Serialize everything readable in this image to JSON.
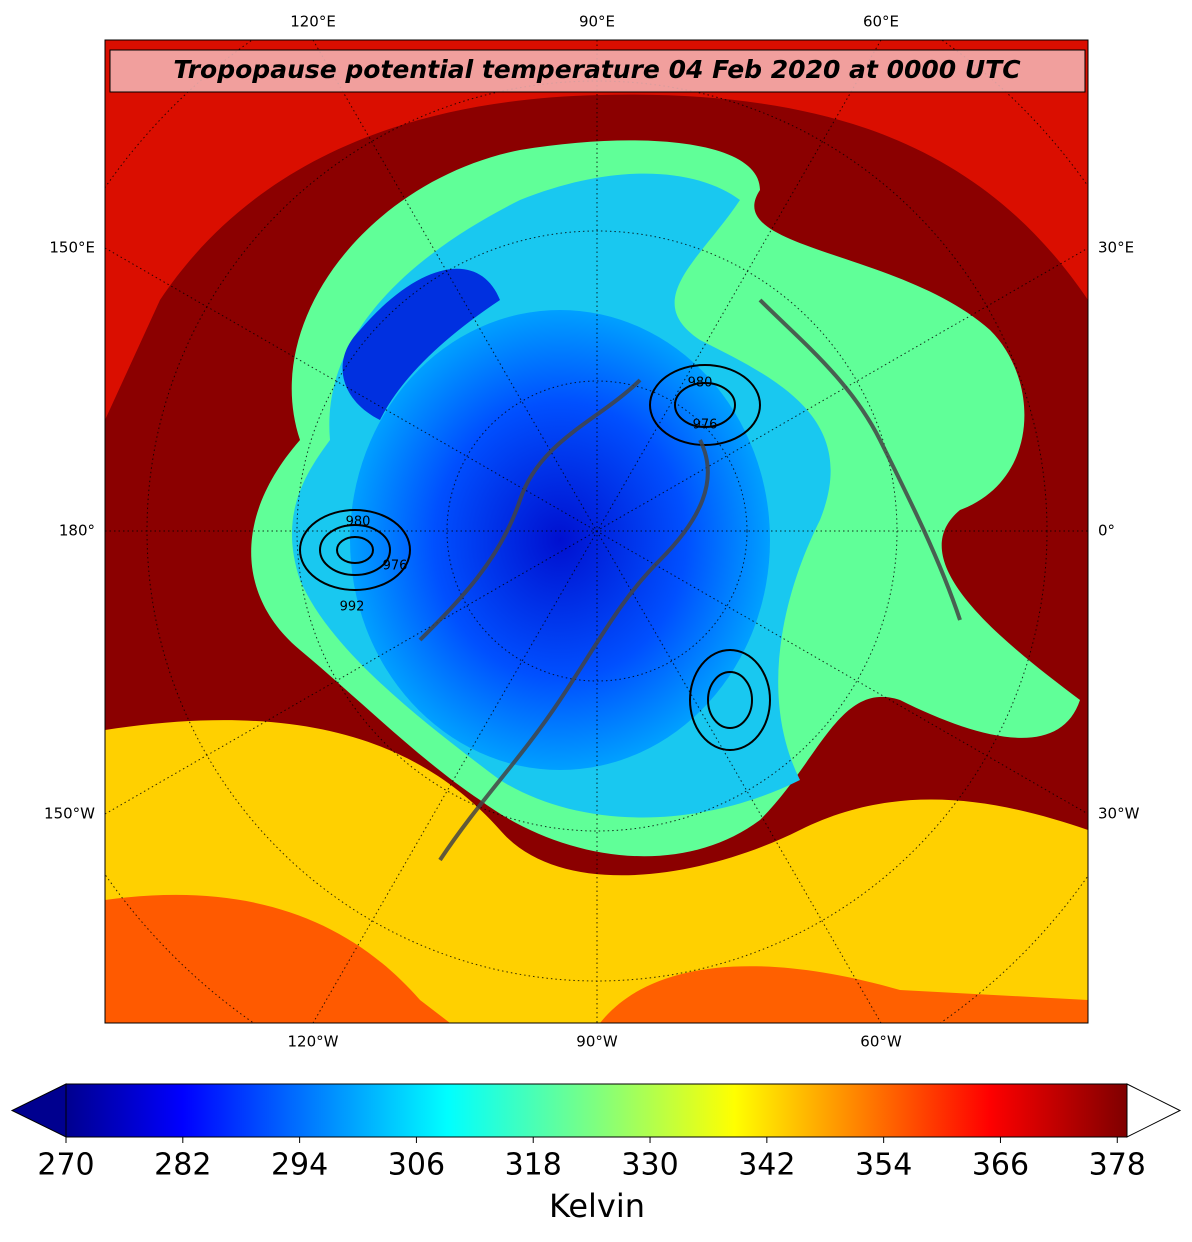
{
  "title": "Tropopause potential temperature 04 Feb 2020 at 0000 UTC",
  "longitude_labels": {
    "top": [
      "120°E",
      "90°E",
      "60°E"
    ],
    "left": [
      "150°E",
      "180°",
      "150°W"
    ],
    "right": [
      "30°E",
      "0°",
      "30°W"
    ],
    "bottom": [
      "120°W",
      "90°W",
      "60°W"
    ]
  },
  "contour_labels": [
    "980",
    "976",
    "992",
    "980",
    "976"
  ],
  "colorbar": {
    "label": "Kelvin",
    "clim": [
      270,
      379
    ],
    "ticks": [
      270,
      282,
      294,
      306,
      318,
      330,
      342,
      354,
      366,
      378
    ]
  }
}
